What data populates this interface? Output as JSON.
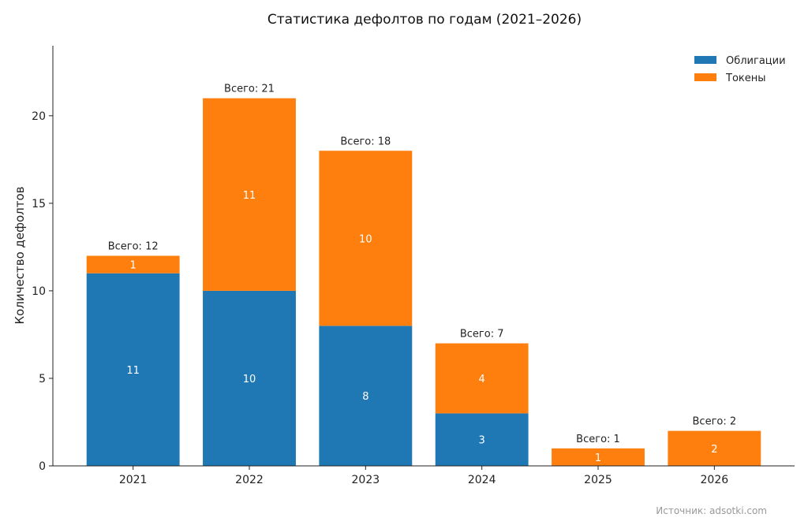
{
  "chart_data": {
    "type": "bar",
    "stacked": true,
    "title": "Статистика дефолтов по годам (2021–2026)",
    "xlabel": "",
    "ylabel": "Количество дефолтов",
    "categories": [
      "2021",
      "2022",
      "2023",
      "2024",
      "2025",
      "2026"
    ],
    "series": [
      {
        "name": "Облигации",
        "color": "#1f77b4",
        "values": [
          11,
          10,
          8,
          3,
          0,
          0
        ]
      },
      {
        "name": "Токены",
        "color": "#ff7f0e",
        "values": [
          1,
          11,
          10,
          4,
          1,
          2
        ]
      }
    ],
    "totals_prefix": "Всего: ",
    "totals": [
      12,
      21,
      18,
      7,
      1,
      2
    ],
    "ylim": [
      0,
      24
    ],
    "yticks": [
      0,
      5,
      10,
      15,
      20
    ],
    "grid": false,
    "legend": "top-right",
    "source": "Источник: adsotki.com"
  }
}
